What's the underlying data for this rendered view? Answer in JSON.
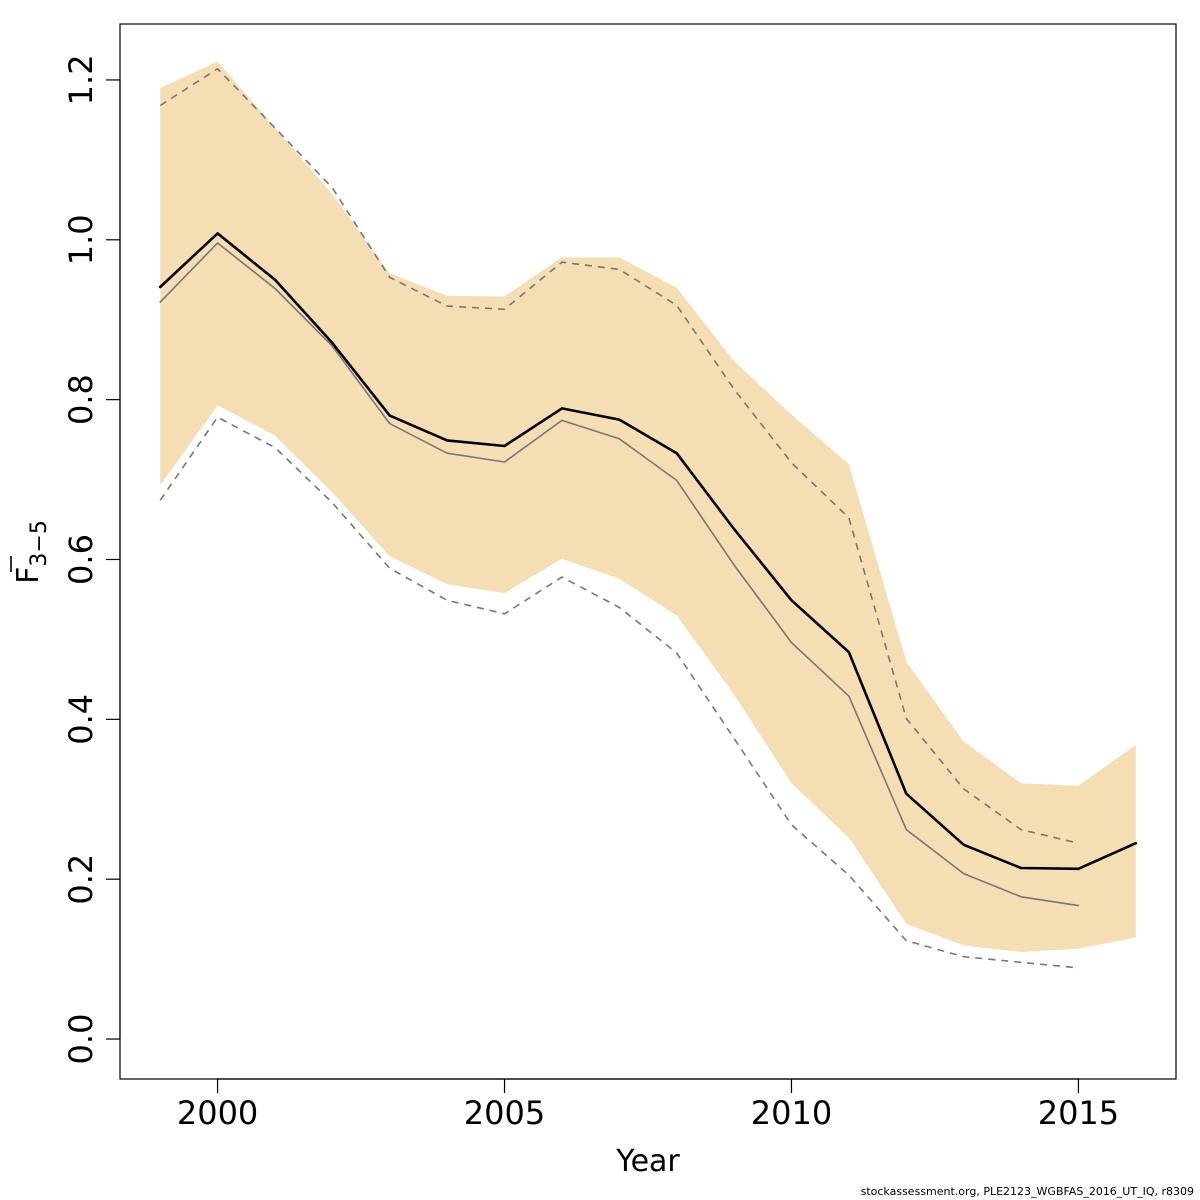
{
  "chart_data": {
    "type": "line",
    "xlabel": "Year",
    "ylabel": {
      "main": "F",
      "subscript": "3−5"
    },
    "xlim": [
      1998.3,
      2016.7
    ],
    "ylim": [
      -0.05,
      1.27
    ],
    "x_ticks": [
      2000,
      2005,
      2010,
      2015
    ],
    "x_tick_labels": [
      "2000",
      "2005",
      "2010",
      "2015"
    ],
    "y_ticks": [
      0.0,
      0.2,
      0.4,
      0.6,
      0.8,
      1.0,
      1.2
    ],
    "y_tick_labels": [
      "0.0",
      "0.2",
      "0.4",
      "0.6",
      "0.8",
      "1.0",
      "1.2"
    ],
    "grid": false,
    "band_color": "#f5deb3",
    "series": [
      {
        "role": "confidence-band",
        "color": "#f5deb3",
        "x": [
          1999,
          2000,
          2001,
          2002,
          2003,
          2004,
          2005,
          2006,
          2007,
          2008,
          2009,
          2010,
          2011,
          2012,
          2013,
          2014,
          2015,
          2016
        ],
        "upper": [
          1.19,
          1.223,
          1.14,
          1.057,
          0.958,
          0.93,
          0.929,
          0.978,
          0.978,
          0.94,
          0.848,
          0.781,
          0.719,
          0.472,
          0.372,
          0.32,
          0.317,
          0.368
        ],
        "lower": [
          0.693,
          0.793,
          0.755,
          0.684,
          0.604,
          0.569,
          0.558,
          0.601,
          0.576,
          0.53,
          0.431,
          0.32,
          0.252,
          0.144,
          0.117,
          0.109,
          0.113,
          0.127
        ]
      },
      {
        "role": "estimate",
        "color": "#000000",
        "style": "solid-thick",
        "x": [
          1999,
          2000,
          2001,
          2002,
          2003,
          2004,
          2005,
          2006,
          2007,
          2008,
          2009,
          2010,
          2011,
          2012,
          2013,
          2014,
          2015,
          2016
        ],
        "values": [
          0.941,
          1.008,
          0.95,
          0.871,
          0.78,
          0.749,
          0.742,
          0.789,
          0.775,
          0.733,
          0.638,
          0.549,
          0.484,
          0.307,
          0.243,
          0.214,
          0.213,
          0.245
        ]
      },
      {
        "role": "previous-estimate",
        "color": "#777777",
        "style": "solid-thin",
        "x": [
          1999,
          2000,
          2001,
          2002,
          2003,
          2004,
          2005,
          2006,
          2007,
          2008,
          2009,
          2010,
          2011,
          2012,
          2013,
          2014,
          2015
        ],
        "values": [
          0.922,
          0.996,
          0.939,
          0.867,
          0.77,
          0.733,
          0.722,
          0.774,
          0.751,
          0.699,
          0.593,
          0.496,
          0.429,
          0.262,
          0.207,
          0.178,
          0.167
        ]
      },
      {
        "role": "previous-upper",
        "color": "#777777",
        "style": "dashed",
        "x": [
          1999,
          2000,
          2001,
          2002,
          2003,
          2004,
          2005,
          2006,
          2007,
          2008,
          2009,
          2010,
          2011,
          2012,
          2013,
          2014,
          2015
        ],
        "values": [
          1.168,
          1.214,
          1.14,
          1.065,
          0.953,
          0.917,
          0.913,
          0.972,
          0.963,
          0.918,
          0.813,
          0.721,
          0.652,
          0.401,
          0.313,
          0.262,
          0.245
        ]
      },
      {
        "role": "previous-lower",
        "color": "#777777",
        "style": "dashed",
        "x": [
          1999,
          2000,
          2001,
          2002,
          2003,
          2004,
          2005,
          2006,
          2007,
          2008,
          2009,
          2010,
          2011,
          2012,
          2013,
          2014,
          2015
        ],
        "values": [
          0.674,
          0.778,
          0.74,
          0.671,
          0.589,
          0.549,
          0.532,
          0.578,
          0.54,
          0.483,
          0.376,
          0.268,
          0.205,
          0.123,
          0.103,
          0.096,
          0.089
        ]
      }
    ]
  },
  "footer": "stockassessment.org, PLE2123_WGBFAS_2016_UT_IQ, r8309"
}
